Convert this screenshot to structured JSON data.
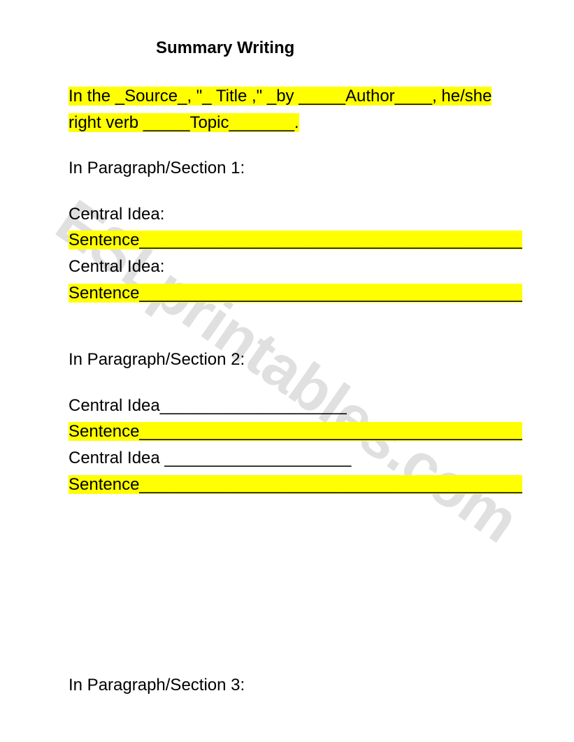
{
  "title": "Summary Writing",
  "intro": {
    "line1": "In the _Source_, \"_ Title ,\" _by _____Author____, he/she",
    "line2": "right verb _____Topic_______."
  },
  "section1": {
    "heading": "In Paragraph/Section 1:",
    "ci1": "Central Idea:",
    "s1": "Sentence_________________________________________",
    "ci2": "Central Idea:",
    "s2": "Sentence_________________________________________"
  },
  "section2": {
    "heading": "In Paragraph/Section 2:",
    "ci1": "Central Idea____________________",
    "s1": "Sentence_________________________________________",
    "ci2": "Central Idea ____________________",
    "s2": "Sentence_________________________________________"
  },
  "section3": {
    "heading": "In Paragraph/Section 3:"
  },
  "watermark_text": "ESLprintables.com",
  "colors": {
    "highlight": "#ffff00",
    "text": "#000000",
    "background": "#ffffff",
    "watermark": "rgba(0,0,0,0.12)"
  },
  "typography": {
    "title_fontsize": 24,
    "body_fontsize": 24,
    "watermark_fontsize": 88,
    "font_family": "Arial"
  }
}
